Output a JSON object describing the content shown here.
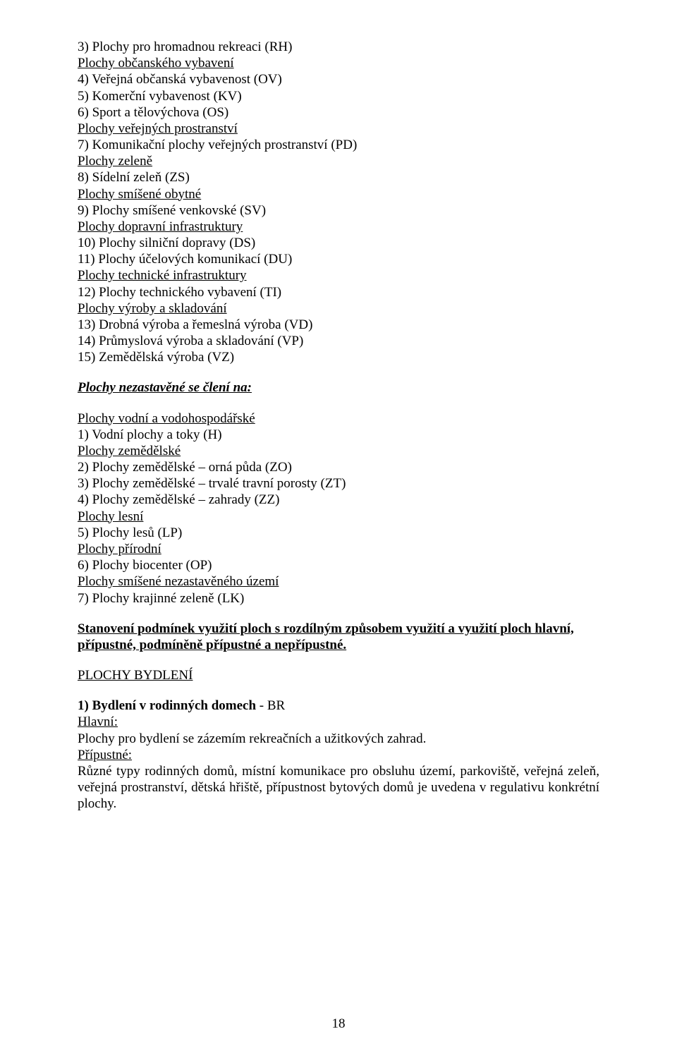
{
  "lines": {
    "l1": "3) Plochy pro hromadnou rekreaci (RH)",
    "l2": "Plochy občanského vybavení",
    "l3": "4) Veřejná občanská vybavenost (OV)",
    "l4": "5) Komerční vybavenost (KV)",
    "l5": "6) Sport a tělovýchova (OS)",
    "l6": "Plochy veřejných prostranství",
    "l7": "7) Komunikační plochy veřejných prostranství (PD)",
    "l8": "Plochy zeleně",
    "l9": "8) Sídelní zeleň (ZS)",
    "l10": "Plochy smíšené obytné",
    "l11": "9) Plochy smíšené venkovské (SV)",
    "l12": "Plochy dopravní infrastruktury",
    "l13": "10) Plochy silniční dopravy (DS)",
    "l14": "11)  Plochy  účelových komunikací (DU)",
    "l15": "Plochy technické infrastruktury",
    "l16": "12) Plochy technického vybavení  (TI)",
    "l17": "Plochy výroby a skladování",
    "l18": "13) Drobná výroba a řemeslná výroba (VD)",
    "l19": "14) Průmyslová výroba a skladování (VP)",
    "l20": "15)  Zemědělská výroba (VZ)",
    "s2_title": "Plochy nezastavěné se člení na:",
    "n1": "Plochy vodní a vodohospodářské",
    "n2": "1) Vodní plochy a toky (H)",
    "n3": "Plochy zemědělské",
    "n4": "2) Plochy zemědělské – orná půda (ZO)",
    "n5": "3) Plochy zemědělské – trvalé travní porosty (ZT)",
    "n6": "4) Plochy zemědělské – zahrady (ZZ)",
    "n7": "Plochy lesní",
    "n8": "5) Plochy lesů (LP)",
    "n9": "Plochy přírodní",
    "n10": "6) Plochy biocenter (OP)",
    "n11": "Plochy smíšené nezastavěného území",
    "n12": "7) Plochy  krajinné zeleně (LK)",
    "stan1": "Stanovení podmínek využití ploch s rozdílným způsobem využití a využití ploch  hlavní,",
    "stan2": "přípustné, podmíněně přípustné  a nepřípustné.",
    "pb": "PLOCHY BYDLENÍ",
    "h1a": "1) Bydlení v rodinných domech",
    "h1b": " - BR",
    "hl": "Hlavní:",
    "hl_text": "Plochy pro bydlení se zázemím rekreačních a užitkových zahrad.",
    "pr": "Přípustné:",
    "pr_text": "Různé typy rodinných domů, místní komunikace pro obsluhu území, parkoviště, veřejná zeleň, veřejná prostranství, dětská hřiště, přípustnost bytových domů je uvedena v regulativu konkrétní plochy.",
    "page_num": "18"
  }
}
